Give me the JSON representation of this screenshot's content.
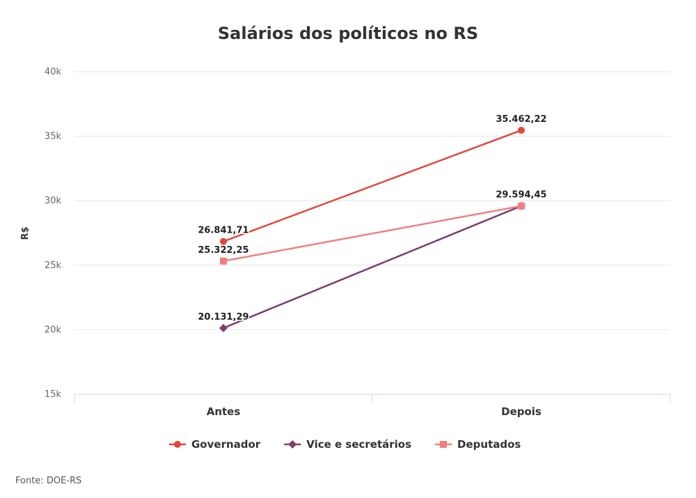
{
  "chart_data": {
    "type": "line",
    "title": "Salários dos políticos no RS",
    "ylabel": "R$",
    "xlabel": "",
    "categories": [
      "Antes",
      "Depois"
    ],
    "ylim": [
      15000,
      40000
    ],
    "yticks": [
      {
        "value": 15000,
        "label": "15k"
      },
      {
        "value": 20000,
        "label": "20k"
      },
      {
        "value": 25000,
        "label": "25k"
      },
      {
        "value": 30000,
        "label": "30k"
      },
      {
        "value": 35000,
        "label": "35k"
      },
      {
        "value": 40000,
        "label": "40k"
      }
    ],
    "grid": true,
    "legend_position": "bottom",
    "series": [
      {
        "name": "Governador",
        "color": "#e0483c",
        "marker": "circle",
        "values": [
          26841.71,
          35462.22
        ],
        "labels": [
          "26.841,71",
          "35.462,22"
        ]
      },
      {
        "name": "Vice e secretários",
        "color": "#7b3f6e",
        "marker": "diamond",
        "values": [
          20131.29,
          29594.45
        ],
        "labels": [
          "20.131,29",
          ""
        ]
      },
      {
        "name": "Deputados",
        "color": "#f08080",
        "marker": "square",
        "values": [
          25322.25,
          29594.45
        ],
        "labels": [
          "25.322,25",
          "29.594,45"
        ]
      }
    ],
    "source": "Fonte: DOE-RS"
  }
}
